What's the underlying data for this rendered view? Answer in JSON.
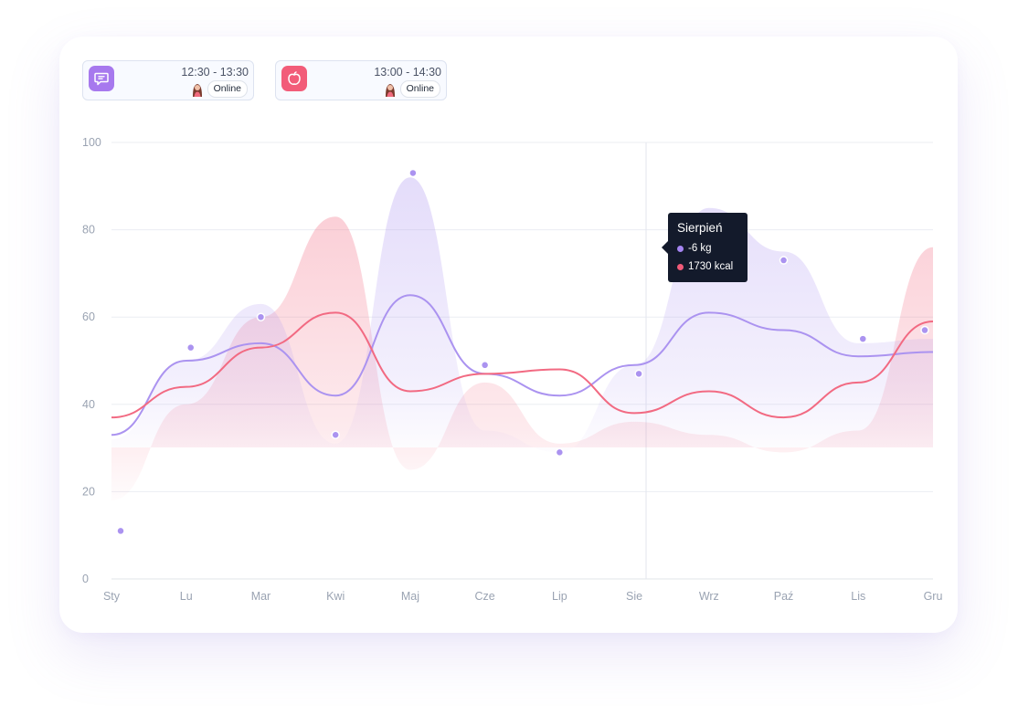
{
  "events": [
    {
      "time": "12:30 - 13:30",
      "status": "Online",
      "icon": "chat-icon",
      "color": "#a779ee"
    },
    {
      "time": "13:00 - 14:30",
      "status": "Online",
      "icon": "apple-icon",
      "color": "#f25c79"
    }
  ],
  "tooltip": {
    "title": "Sierpień",
    "rows": [
      {
        "text": "-6 kg",
        "color": "#a585f2"
      },
      {
        "text": "1730 kcal",
        "color": "#f05a78"
      }
    ]
  },
  "chart_data": {
    "type": "line",
    "title": "",
    "xlabel": "",
    "ylabel": "",
    "ylim": [
      0,
      100
    ],
    "y_ticks": [
      0,
      20,
      40,
      60,
      80,
      100
    ],
    "categories": [
      "Sty",
      "Lu",
      "Mar",
      "Kwi",
      "Maj",
      "Cze",
      "Lip",
      "Sie",
      "Wrz",
      "Paź",
      "Lis",
      "Gru"
    ],
    "series": [
      {
        "color": "#ab93f0",
        "area": [
          32,
          50,
          63,
          31,
          92,
          34,
          29,
          49,
          85,
          75,
          54,
          55
        ],
        "line": [
          33,
          50,
          54,
          42,
          65,
          47,
          42,
          49,
          61,
          57,
          51,
          52
        ],
        "points": [
          11,
          53,
          60,
          33,
          93,
          49,
          29,
          47,
          null,
          73,
          55,
          57
        ]
      },
      {
        "color": "#f26a82",
        "area": [
          18,
          40,
          60,
          83,
          25,
          45,
          31,
          36,
          33,
          29,
          34,
          76
        ],
        "line": [
          37,
          44,
          53,
          61,
          43,
          47,
          48,
          38,
          43,
          37,
          45,
          59
        ]
      }
    ],
    "highlight": {
      "category": "Sie",
      "label": "Sierpień"
    },
    "grid": true,
    "legend": "none",
    "colors": {
      "line": "#ebedf2",
      "axis": "#e1e4ea",
      "tick_label": "#9aa3b2",
      "cursor": "#e3e6ee"
    }
  }
}
